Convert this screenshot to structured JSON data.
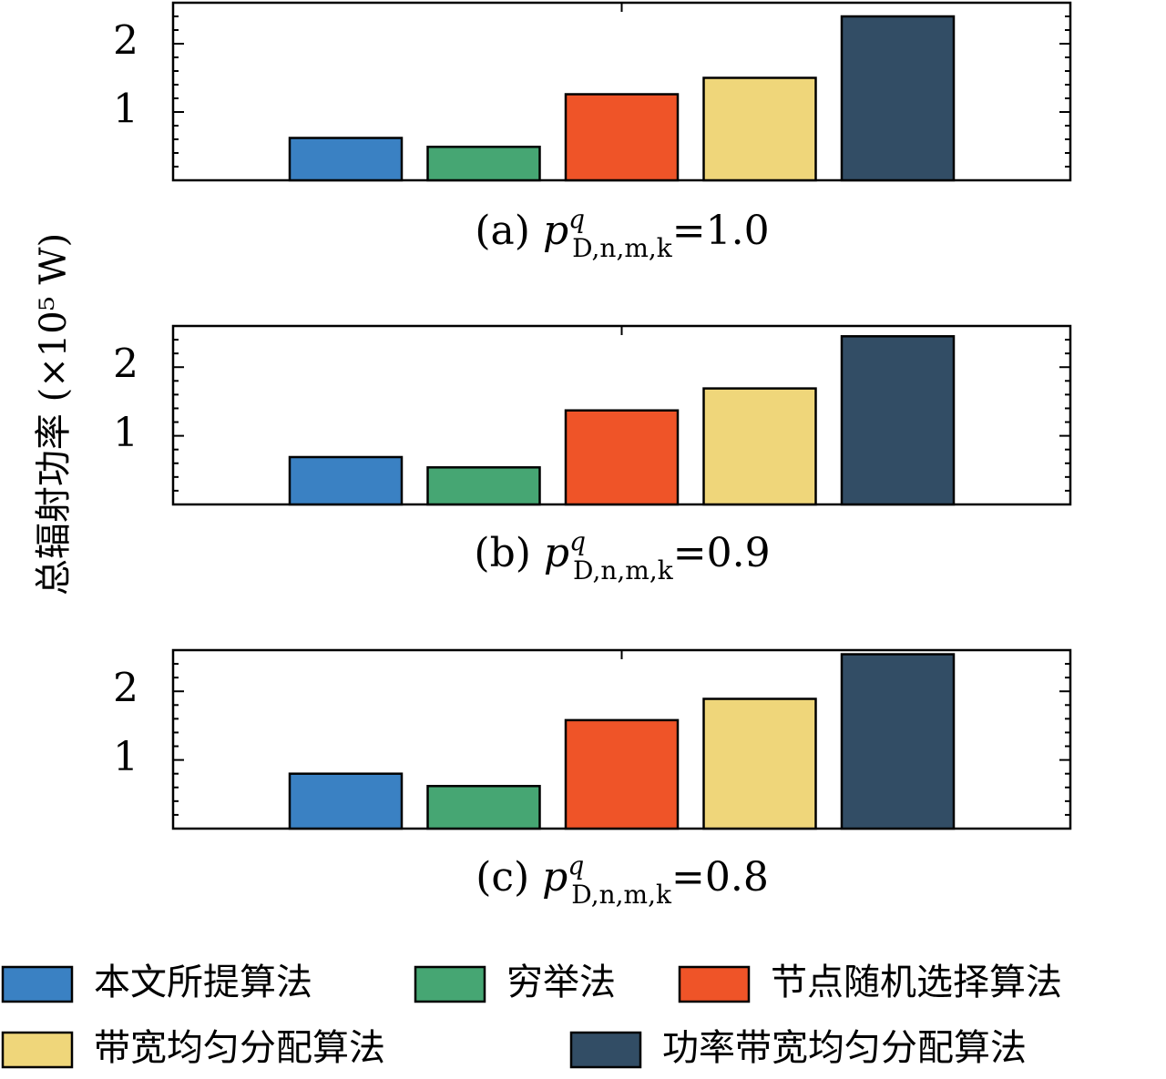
{
  "ylabel": "总辐射功率 (×10⁵ W)",
  "colors": {
    "proposed": "#3a81c3",
    "exhaustive": "#46a673",
    "random_node": "#ef5428",
    "equal_bandwidth": "#efd67a",
    "power_bandwidth": "#324d65",
    "edge": "#000000"
  },
  "legend": [
    {
      "key": "proposed",
      "label": "本文所提算法",
      "color": "#3a81c3"
    },
    {
      "key": "exhaustive",
      "label": "穷举法",
      "color": "#46a673"
    },
    {
      "key": "random_node",
      "label": "节点随机选择算法",
      "color": "#ef5428"
    },
    {
      "key": "equal_bandwidth",
      "label": "带宽均匀分配算法",
      "color": "#efd67a"
    },
    {
      "key": "power_bandwidth",
      "label": "功率带宽均匀分配算法",
      "color": "#324d65"
    }
  ],
  "chart_data": [
    {
      "type": "bar",
      "caption": "(a) p^q_{D,n,m,k}=1.0",
      "caption_prefix": "(a) ",
      "caption_p": "p",
      "caption_sup": "q",
      "caption_sub": "D,n,m,k",
      "caption_value": "=1.0",
      "series": [
        {
          "name": "本文所提算法",
          "value": 0.62
        },
        {
          "name": "穷举法",
          "value": 0.49
        },
        {
          "name": "节点随机选择算法",
          "value": 1.26
        },
        {
          "name": "带宽均匀分配算法",
          "value": 1.5
        },
        {
          "name": "功率带宽均匀分配算法",
          "value": 2.4
        }
      ],
      "ylim": [
        0,
        2.6
      ],
      "yticks": [
        1,
        2
      ],
      "ytick_labels": [
        "1",
        "2"
      ]
    },
    {
      "type": "bar",
      "caption": "(b) p^q_{D,n,m,k}=0.9",
      "caption_prefix": "(b) ",
      "caption_p": "p",
      "caption_sup": "q",
      "caption_sub": "D,n,m,k",
      "caption_value": "=0.9",
      "series": [
        {
          "name": "本文所提算法",
          "value": 0.69
        },
        {
          "name": "穷举法",
          "value": 0.54
        },
        {
          "name": "节点随机选择算法",
          "value": 1.37
        },
        {
          "name": "带宽均匀分配算法",
          "value": 1.69
        },
        {
          "name": "功率带宽均匀分配算法",
          "value": 2.45
        }
      ],
      "ylim": [
        0,
        2.6
      ],
      "yticks": [
        1,
        2
      ],
      "ytick_labels": [
        "1",
        "2"
      ]
    },
    {
      "type": "bar",
      "caption": "(c) p^q_{D,n,m,k}=0.8",
      "caption_prefix": "(c) ",
      "caption_p": "p",
      "caption_sup": "q",
      "caption_sub": "D,n,m,k",
      "caption_value": "=0.8",
      "series": [
        {
          "name": "本文所提算法",
          "value": 0.8
        },
        {
          "name": "穷举法",
          "value": 0.62
        },
        {
          "name": "节点随机选择算法",
          "value": 1.58
        },
        {
          "name": "带宽均匀分配算法",
          "value": 1.89
        },
        {
          "name": "功率带宽均匀分配算法",
          "value": 2.54
        }
      ],
      "ylim": [
        0,
        2.6
      ],
      "yticks": [
        1,
        2
      ],
      "ytick_labels": [
        "1",
        "2"
      ]
    }
  ]
}
